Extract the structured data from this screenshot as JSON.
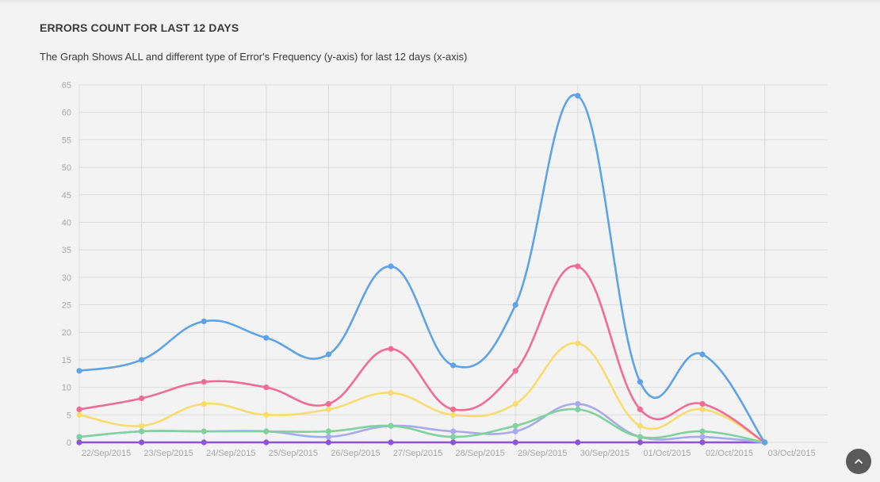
{
  "header": {
    "title": "ERRORS COUNT FOR LAST 12 DAYS",
    "subtitle": "The Graph Shows ALL and different type of Error's Frequency (y-axis) for last 12 days (x-axis)"
  },
  "scroll_top": {
    "icon": "chevron-up-icon"
  },
  "chart_data": {
    "type": "line",
    "title": "ERRORS COUNT FOR LAST 12 DAYS",
    "subtitle": "The Graph Shows ALL and different type of Error's Frequency (y-axis) for last 12 days (x-axis)",
    "xlabel": "",
    "ylabel": "",
    "categories": [
      "22/Sep/2015",
      "23/Sep/2015",
      "24/Sep/2015",
      "25/Sep/2015",
      "26/Sep/2015",
      "27/Sep/2015",
      "28/Sep/2015",
      "29/Sep/2015",
      "30/Sep/2015",
      "01/Oct/2015",
      "02/Oct/2015",
      "03/Oct/2015"
    ],
    "ylim": [
      0,
      65
    ],
    "yticks": [
      0,
      5,
      10,
      15,
      20,
      25,
      30,
      35,
      40,
      45,
      50,
      55,
      60,
      65
    ],
    "grid": true,
    "legend": "none",
    "series": [
      {
        "color": "#5da3e6",
        "values": [
          13,
          15,
          22,
          19,
          16,
          32,
          14,
          25,
          63,
          11,
          16,
          0
        ]
      },
      {
        "color": "#f06b95",
        "values": [
          6,
          8,
          11,
          10,
          7,
          17,
          6,
          13,
          32,
          6,
          7,
          0
        ]
      },
      {
        "color": "#f8dc6e",
        "values": [
          5,
          3,
          7,
          5,
          6,
          9,
          5,
          7,
          18,
          3,
          6,
          0
        ]
      },
      {
        "color": "#7ed39c",
        "values": [
          1,
          2,
          2,
          2,
          2,
          3,
          1,
          3,
          6,
          1,
          2,
          0
        ]
      },
      {
        "color": "#a9a9ec",
        "values": [
          1,
          2,
          2,
          2,
          1,
          3,
          2,
          2,
          7,
          1,
          1,
          0
        ]
      },
      {
        "color": "#8b55d6",
        "values": [
          0,
          0,
          0,
          0,
          0,
          0,
          0,
          0,
          0,
          0,
          0,
          0
        ]
      }
    ]
  }
}
